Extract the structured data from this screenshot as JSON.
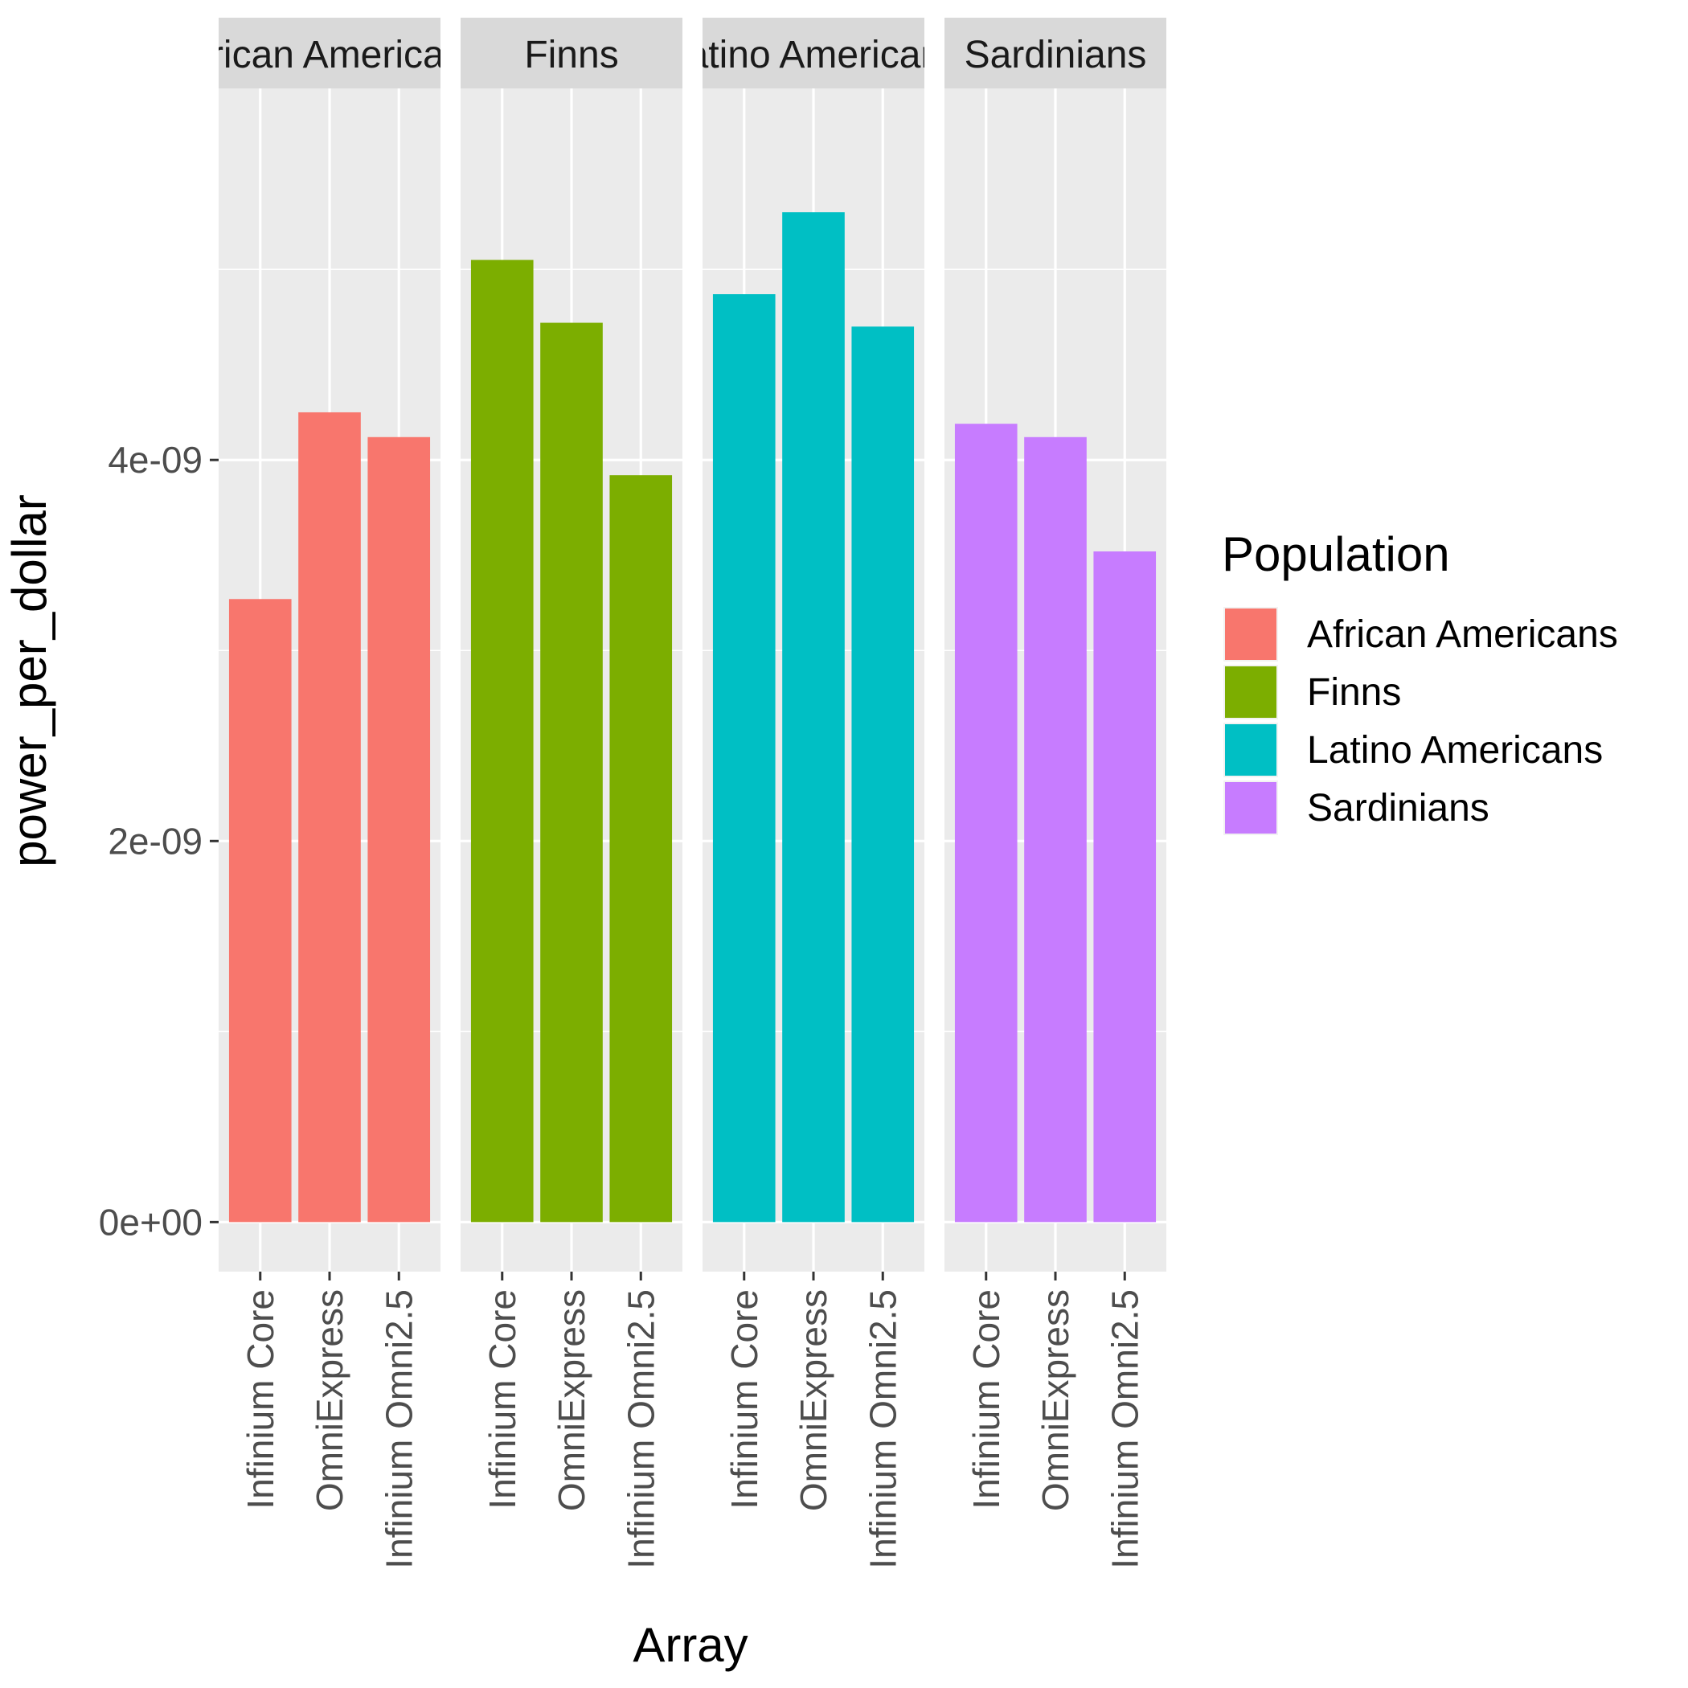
{
  "chart_data": {
    "type": "bar",
    "xlabel": "Array",
    "ylabel": "power_per_dollar",
    "ylim": [
      -2.6e-10,
      5.95e-09
    ],
    "y_ticks": [
      {
        "value": 0,
        "label": "0e+00"
      },
      {
        "value": 2e-09,
        "label": "2e-09"
      },
      {
        "value": 4e-09,
        "label": "4e-09"
      }
    ],
    "grid": true,
    "legend": {
      "title": "Population",
      "position": "right",
      "entries": [
        "African Americans",
        "Finns",
        "Latino Americans",
        "Sardinians"
      ]
    },
    "categories": [
      "Infinium Core",
      "OmniExpress",
      "Infinium Omni2.5"
    ],
    "facets": [
      {
        "label": "African Americans",
        "color": "#F8766D",
        "values": [
          3.27e-09,
          4.25e-09,
          4.12e-09
        ]
      },
      {
        "label": "Finns",
        "color": "#7CAE00",
        "values": [
          5.05e-09,
          4.72e-09,
          3.92e-09
        ]
      },
      {
        "label": "Latino Americans",
        "color": "#00BFC4",
        "values": [
          4.87e-09,
          5.3e-09,
          4.7e-09
        ]
      },
      {
        "label": "Sardinians",
        "color": "#C77CFF",
        "values": [
          4.19e-09,
          4.12e-09,
          3.52e-09
        ]
      }
    ]
  }
}
